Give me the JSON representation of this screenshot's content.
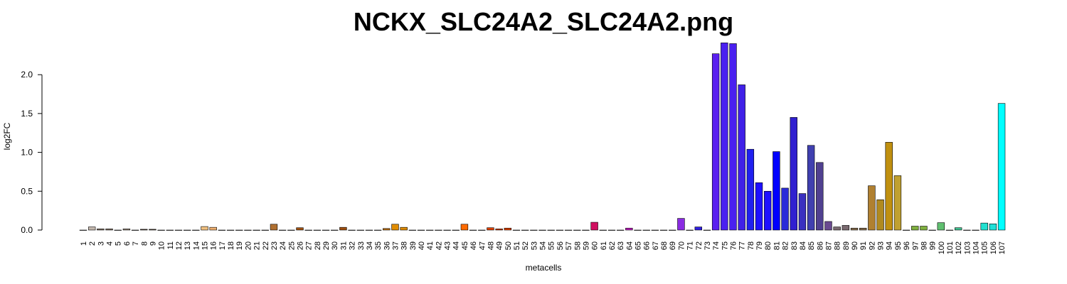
{
  "chart_data": {
    "type": "bar",
    "title": "NCKX_SLC24A2_SLC24A2.png",
    "xlabel": "metacells",
    "ylabel": "log2FC",
    "ylim": [
      0,
      2.42
    ],
    "yticks": [
      "0.0",
      "0.5",
      "1.0",
      "1.5",
      "2.0"
    ],
    "categories": [
      "1",
      "2",
      "3",
      "4",
      "5",
      "6",
      "7",
      "8",
      "9",
      "10",
      "11",
      "12",
      "13",
      "14",
      "15",
      "16",
      "17",
      "18",
      "19",
      "20",
      "21",
      "22",
      "23",
      "24",
      "25",
      "26",
      "27",
      "28",
      "29",
      "30",
      "31",
      "32",
      "33",
      "34",
      "35",
      "36",
      "37",
      "38",
      "39",
      "40",
      "41",
      "42",
      "43",
      "44",
      "45",
      "46",
      "47",
      "48",
      "49",
      "50",
      "51",
      "52",
      "53",
      "54",
      "55",
      "56",
      "57",
      "58",
      "59",
      "60",
      "61",
      "62",
      "63",
      "64",
      "65",
      "66",
      "67",
      "68",
      "69",
      "70",
      "71",
      "72",
      "73",
      "74",
      "75",
      "76",
      "77",
      "78",
      "79",
      "80",
      "81",
      "82",
      "83",
      "84",
      "85",
      "86",
      "87",
      "88",
      "89",
      "90",
      "91",
      "92",
      "93",
      "94",
      "95",
      "96",
      "97",
      "98",
      "99",
      "100",
      "101",
      "102",
      "103",
      "104",
      "105",
      "106",
      "107"
    ],
    "values": [
      0.0,
      0.04,
      0.015,
      0.015,
      0.0,
      0.015,
      0.0,
      0.01,
      0.01,
      0.0,
      0.0,
      0.0,
      0.0,
      0.0,
      0.045,
      0.035,
      0.0,
      0.0,
      0.0,
      0.0,
      0.0,
      0.0,
      0.075,
      0.0,
      0.0,
      0.03,
      0.0,
      0.0,
      0.0,
      0.0,
      0.035,
      0.0,
      0.0,
      0.0,
      0.0,
      0.02,
      0.075,
      0.035,
      0.0,
      0.0,
      0.0,
      0.0,
      0.0,
      0.0,
      0.075,
      0.0,
      0.0,
      0.03,
      0.015,
      0.025,
      0.0,
      0.0,
      0.0,
      0.0,
      0.0,
      0.0,
      0.0,
      0.0,
      0.0,
      0.1,
      0.0,
      0.0,
      0.0,
      0.025,
      0.0,
      0.0,
      0.0,
      0.0,
      0.0,
      0.15,
      0.0,
      0.04,
      0.0,
      2.27,
      2.41,
      2.4,
      1.87,
      1.04,
      0.61,
      0.5,
      1.01,
      0.54,
      1.45,
      0.47,
      1.09,
      0.87,
      0.11,
      0.04,
      0.06,
      0.025,
      0.025,
      0.57,
      0.39,
      1.13,
      0.7,
      0.0,
      0.05,
      0.05,
      0.0,
      0.095,
      0.0,
      0.03,
      0.0,
      0.0,
      0.09,
      0.08,
      1.63
    ],
    "colors": [
      "#bcbcbc",
      "#c2b6ac",
      "#8c7c6c",
      "#8c7c6c",
      "#bcbcbc",
      "#a09080",
      "#bcbcbc",
      "#5c4c3c",
      "#5c4c3c",
      "#bcbcbc",
      "#bcbcbc",
      "#bcbcbc",
      "#bcbcbc",
      "#bcbcbc",
      "#f0c080",
      "#f0b070",
      "#bcbcbc",
      "#bcbcbc",
      "#bcbcbc",
      "#bcbcbc",
      "#bcbcbc",
      "#bcbcbc",
      "#b07030",
      "#bcbcbc",
      "#bcbcbc",
      "#a05010",
      "#bcbcbc",
      "#bcbcbc",
      "#bcbcbc",
      "#bcbcbc",
      "#a05010",
      "#bcbcbc",
      "#bcbcbc",
      "#bcbcbc",
      "#bcbcbc",
      "#c07010",
      "#e08c00",
      "#e08c00",
      "#bcbcbc",
      "#bcbcbc",
      "#bcbcbc",
      "#bcbcbc",
      "#bcbcbc",
      "#bcbcbc",
      "#ff6a00",
      "#bcbcbc",
      "#bcbcbc",
      "#e04000",
      "#e04000",
      "#e04000",
      "#bcbcbc",
      "#bcbcbc",
      "#bcbcbc",
      "#bcbcbc",
      "#bcbcbc",
      "#bcbcbc",
      "#bcbcbc",
      "#bcbcbc",
      "#bcbcbc",
      "#d01060",
      "#bcbcbc",
      "#bcbcbc",
      "#bcbcbc",
      "#c020c0",
      "#bcbcbc",
      "#bcbcbc",
      "#bcbcbc",
      "#bcbcbc",
      "#bcbcbc",
      "#8a2be2",
      "#bcbcbc",
      "#3020e0",
      "#bcbcbc",
      "#5a20f0",
      "#4a20f0",
      "#4a20f0",
      "#4020e8",
      "#2020f0",
      "#1e10ff",
      "#1e10ff",
      "#0000ff",
      "#2a2ad8",
      "#3020d0",
      "#3a30c0",
      "#4040b0",
      "#504090",
      "#6a4a90",
      "#7a6a70",
      "#7a6a70",
      "#8a7050",
      "#8a7050",
      "#b08030",
      "#b08a20",
      "#c09010",
      "#c0a030",
      "#bcbcbc",
      "#80b040",
      "#80b040",
      "#bcbcbc",
      "#60c070",
      "#bcbcbc",
      "#40c090",
      "#bcbcbc",
      "#bcbcbc",
      "#20e0d0",
      "#20e0d8",
      "#00ffff"
    ]
  }
}
